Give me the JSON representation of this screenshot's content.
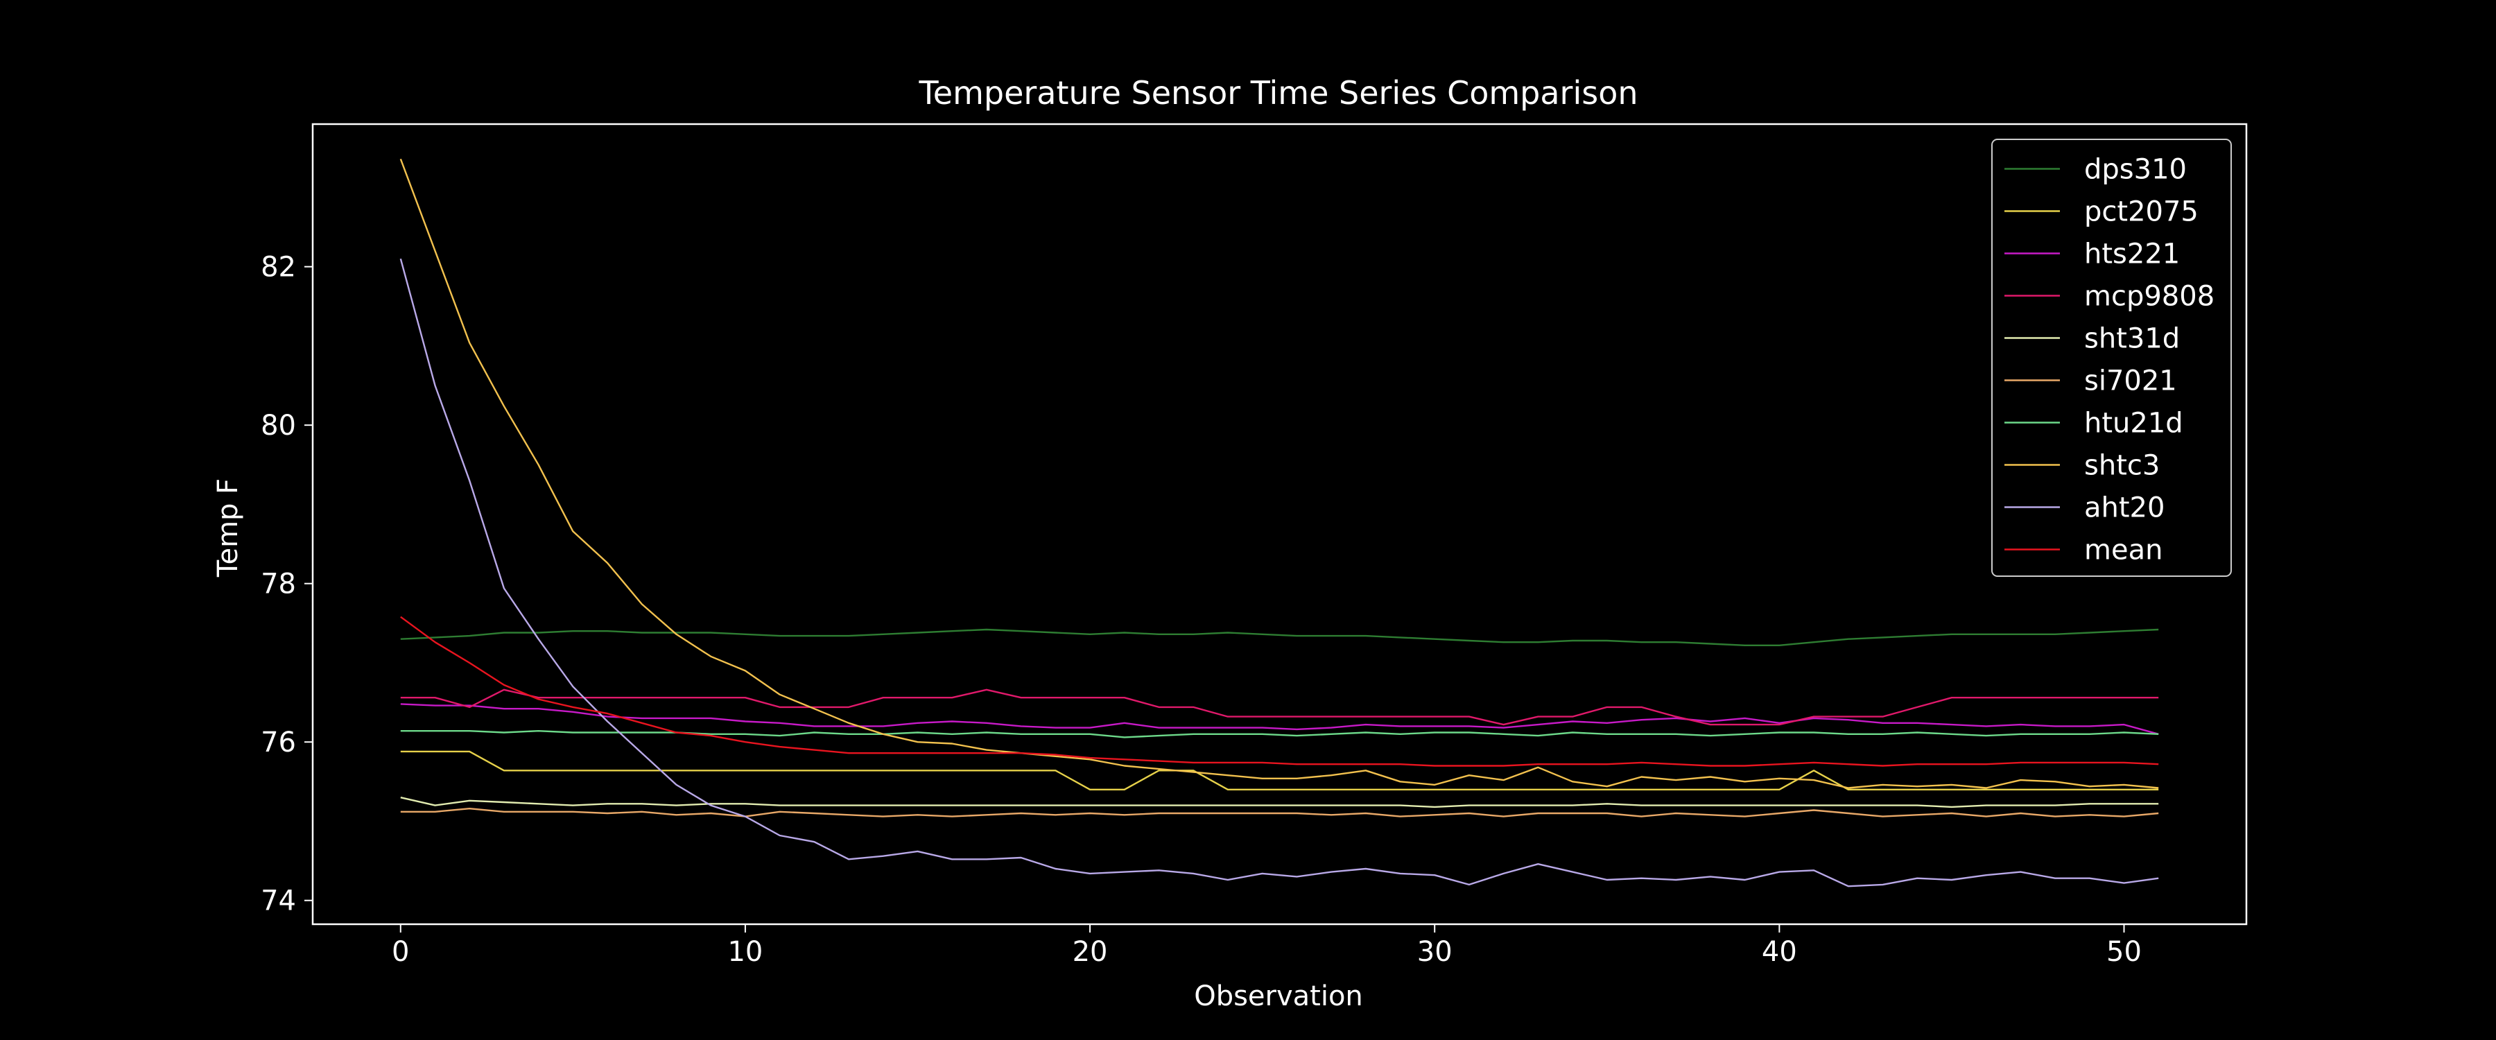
{
  "chart_data": {
    "type": "line",
    "title": "Temperature Sensor Time Series Comparison",
    "xlabel": "Observation",
    "ylabel": "Temp F",
    "xlim": [
      -2.55,
      53.55
    ],
    "ylim": [
      73.7,
      83.8
    ],
    "xticks": [
      0,
      10,
      20,
      30,
      40,
      50
    ],
    "yticks": [
      74,
      76,
      78,
      80,
      82
    ],
    "grid": false,
    "legend": "top-right",
    "series": [
      {
        "name": "dps310",
        "color": "#2e7d32",
        "values": [
          77.3,
          77.32,
          77.34,
          77.38,
          77.38,
          77.4,
          77.4,
          77.38,
          77.38,
          77.38,
          77.36,
          77.34,
          77.34,
          77.34,
          77.36,
          77.38,
          77.4,
          77.42,
          77.4,
          77.38,
          77.36,
          77.38,
          77.36,
          77.36,
          77.38,
          77.36,
          77.34,
          77.34,
          77.34,
          77.32,
          77.3,
          77.28,
          77.26,
          77.26,
          77.28,
          77.28,
          77.26,
          77.26,
          77.24,
          77.22,
          77.22,
          77.26,
          77.3,
          77.32,
          77.34,
          77.36,
          77.36,
          77.36,
          77.36,
          77.38,
          77.4,
          77.42
        ]
      },
      {
        "name": "pct2075",
        "color": "#e6d14a",
        "values": [
          75.88,
          75.88,
          75.88,
          75.64,
          75.64,
          75.64,
          75.64,
          75.64,
          75.64,
          75.64,
          75.64,
          75.64,
          75.64,
          75.64,
          75.64,
          75.64,
          75.64,
          75.64,
          75.64,
          75.64,
          75.4,
          75.4,
          75.64,
          75.64,
          75.4,
          75.4,
          75.4,
          75.4,
          75.4,
          75.4,
          75.4,
          75.4,
          75.4,
          75.4,
          75.4,
          75.4,
          75.4,
          75.4,
          75.4,
          75.4,
          75.4,
          75.64,
          75.4,
          75.4,
          75.4,
          75.4,
          75.4,
          75.4,
          75.4,
          75.4,
          75.4,
          75.4
        ]
      },
      {
        "name": "hts221",
        "color": "#c71ac7",
        "values": [
          76.48,
          76.46,
          76.46,
          76.42,
          76.42,
          76.38,
          76.32,
          76.3,
          76.3,
          76.3,
          76.26,
          76.24,
          76.2,
          76.2,
          76.2,
          76.24,
          76.26,
          76.24,
          76.2,
          76.18,
          76.18,
          76.24,
          76.18,
          76.18,
          76.18,
          76.18,
          76.16,
          76.18,
          76.22,
          76.2,
          76.2,
          76.2,
          76.18,
          76.22,
          76.26,
          76.24,
          76.28,
          76.3,
          76.26,
          76.3,
          76.24,
          76.3,
          76.28,
          76.24,
          76.24,
          76.22,
          76.2,
          76.22,
          76.2,
          76.2,
          76.22,
          76.1
        ]
      },
      {
        "name": "mcp9808",
        "color": "#e0196b",
        "values": [
          76.56,
          76.56,
          76.44,
          76.66,
          76.56,
          76.56,
          76.56,
          76.56,
          76.56,
          76.56,
          76.56,
          76.44,
          76.44,
          76.44,
          76.56,
          76.56,
          76.56,
          76.66,
          76.56,
          76.56,
          76.56,
          76.56,
          76.44,
          76.44,
          76.32,
          76.32,
          76.32,
          76.32,
          76.32,
          76.32,
          76.32,
          76.32,
          76.22,
          76.32,
          76.32,
          76.44,
          76.44,
          76.32,
          76.22,
          76.22,
          76.22,
          76.32,
          76.32,
          76.32,
          76.44,
          76.56,
          76.56,
          76.56,
          76.56,
          76.56,
          76.56,
          76.56
        ]
      },
      {
        "name": "sht31d",
        "color": "#e2ecb0",
        "values": [
          75.3,
          75.2,
          75.26,
          75.24,
          75.22,
          75.2,
          75.22,
          75.22,
          75.2,
          75.22,
          75.22,
          75.2,
          75.2,
          75.2,
          75.2,
          75.2,
          75.2,
          75.2,
          75.2,
          75.2,
          75.2,
          75.2,
          75.2,
          75.2,
          75.2,
          75.2,
          75.2,
          75.2,
          75.2,
          75.2,
          75.18,
          75.2,
          75.2,
          75.2,
          75.2,
          75.22,
          75.2,
          75.2,
          75.2,
          75.2,
          75.2,
          75.2,
          75.2,
          75.2,
          75.2,
          75.18,
          75.2,
          75.2,
          75.2,
          75.22,
          75.22,
          75.22
        ]
      },
      {
        "name": "si7021",
        "color": "#e8a868",
        "values": [
          75.12,
          75.12,
          75.16,
          75.12,
          75.12,
          75.12,
          75.1,
          75.12,
          75.08,
          75.1,
          75.06,
          75.12,
          75.1,
          75.08,
          75.06,
          75.08,
          75.06,
          75.08,
          75.1,
          75.08,
          75.1,
          75.08,
          75.1,
          75.1,
          75.1,
          75.1,
          75.1,
          75.08,
          75.1,
          75.06,
          75.08,
          75.1,
          75.06,
          75.1,
          75.1,
          75.1,
          75.06,
          75.1,
          75.08,
          75.06,
          75.1,
          75.14,
          75.1,
          75.06,
          75.08,
          75.1,
          75.06,
          75.1,
          75.06,
          75.08,
          75.06,
          75.1
        ]
      },
      {
        "name": "htu21d",
        "color": "#6dd98a",
        "values": [
          76.14,
          76.14,
          76.14,
          76.12,
          76.14,
          76.12,
          76.12,
          76.12,
          76.12,
          76.1,
          76.1,
          76.08,
          76.12,
          76.1,
          76.1,
          76.12,
          76.1,
          76.12,
          76.1,
          76.1,
          76.1,
          76.06,
          76.08,
          76.1,
          76.1,
          76.1,
          76.08,
          76.1,
          76.12,
          76.1,
          76.12,
          76.12,
          76.1,
          76.08,
          76.12,
          76.1,
          76.1,
          76.1,
          76.08,
          76.1,
          76.12,
          76.12,
          76.1,
          76.1,
          76.12,
          76.1,
          76.08,
          76.1,
          76.1,
          76.1,
          76.12,
          76.1
        ]
      },
      {
        "name": "shtc3",
        "color": "#f2c14e",
        "values": [
          83.36,
          82.2,
          81.04,
          80.24,
          79.5,
          78.66,
          78.26,
          77.74,
          77.36,
          77.08,
          76.9,
          76.6,
          76.42,
          76.24,
          76.1,
          76.0,
          75.98,
          75.9,
          75.86,
          75.82,
          75.78,
          75.7,
          75.66,
          75.62,
          75.58,
          75.54,
          75.54,
          75.58,
          75.64,
          75.5,
          75.46,
          75.58,
          75.52,
          75.68,
          75.5,
          75.44,
          75.56,
          75.52,
          75.56,
          75.5,
          75.54,
          75.52,
          75.42,
          75.46,
          75.44,
          75.46,
          75.42,
          75.52,
          75.5,
          75.44,
          75.46,
          75.42
        ]
      },
      {
        "name": "aht20",
        "color": "#b9a9e8",
        "values": [
          82.1,
          80.5,
          79.3,
          77.94,
          77.3,
          76.7,
          76.26,
          75.86,
          75.46,
          75.2,
          75.06,
          74.82,
          74.74,
          74.52,
          74.56,
          74.62,
          74.52,
          74.52,
          74.54,
          74.4,
          74.34,
          74.36,
          74.38,
          74.34,
          74.26,
          74.34,
          74.3,
          74.36,
          74.4,
          74.34,
          74.32,
          74.2,
          74.34,
          74.46,
          74.36,
          74.26,
          74.28,
          74.26,
          74.3,
          74.26,
          74.36,
          74.38,
          74.18,
          74.2,
          74.28,
          74.26,
          74.32,
          74.36,
          74.28,
          74.28,
          74.22,
          74.28
        ]
      },
      {
        "name": "mean",
        "color": "#e8141f",
        "values": [
          77.58,
          77.26,
          77.0,
          76.72,
          76.54,
          76.44,
          76.36,
          76.24,
          76.12,
          76.08,
          76.0,
          75.94,
          75.9,
          75.86,
          75.86,
          75.86,
          75.86,
          75.86,
          75.86,
          75.84,
          75.8,
          75.78,
          75.76,
          75.74,
          75.74,
          75.74,
          75.72,
          75.72,
          75.72,
          75.72,
          75.7,
          75.7,
          75.7,
          75.72,
          75.72,
          75.72,
          75.74,
          75.72,
          75.7,
          75.7,
          75.72,
          75.74,
          75.72,
          75.7,
          75.72,
          75.72,
          75.72,
          75.74,
          75.74,
          75.74,
          75.74,
          75.72
        ]
      }
    ]
  }
}
